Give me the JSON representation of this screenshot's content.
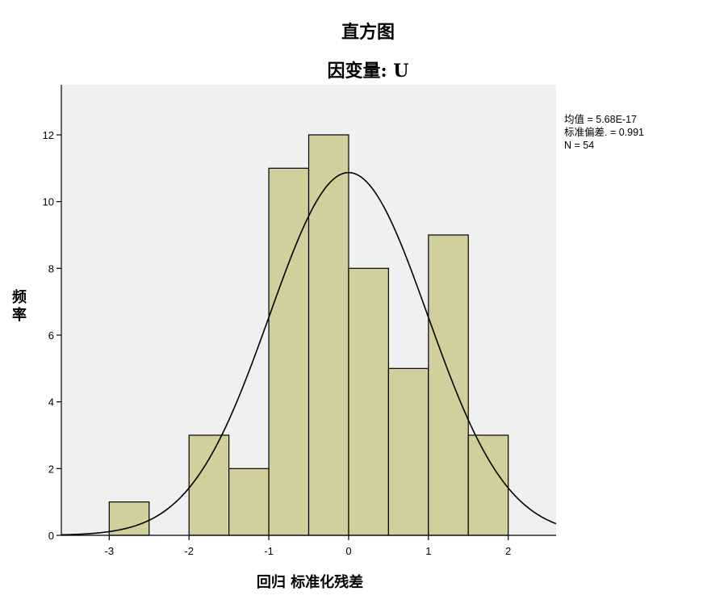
{
  "chart_data": {
    "type": "bar",
    "title": "直方图",
    "subtitle": "因变量: U",
    "xlabel": "回归 标准化残差",
    "ylabel": "频率",
    "xlim": [
      -3.6,
      2.6
    ],
    "ylim": [
      0,
      13.5
    ],
    "xticks": [
      -3,
      -2,
      -1,
      0,
      1,
      2
    ],
    "yticks": [
      0,
      2,
      4,
      6,
      8,
      10,
      12
    ],
    "bins": [
      {
        "x0": -3.0,
        "x1": -2.5,
        "count": 1
      },
      {
        "x0": -2.5,
        "x1": -2.0,
        "count": 0
      },
      {
        "x0": -2.0,
        "x1": -1.5,
        "count": 3
      },
      {
        "x0": -1.5,
        "x1": -1.0,
        "count": 2
      },
      {
        "x0": -1.0,
        "x1": -0.5,
        "count": 11
      },
      {
        "x0": -0.5,
        "x1": 0.0,
        "count": 12
      },
      {
        "x0": 0.0,
        "x1": 0.5,
        "count": 8
      },
      {
        "x0": 0.5,
        "x1": 1.0,
        "count": 5
      },
      {
        "x0": 1.0,
        "x1": 1.5,
        "count": 9
      },
      {
        "x0": 1.5,
        "x1": 2.0,
        "count": 3
      }
    ],
    "normal_curve": {
      "mean": 5.68e-17,
      "std": 0.991,
      "n": 54,
      "bin_width": 0.5
    },
    "stats": {
      "mean_line": "均值 = 5.68E-17",
      "std_line": "标准偏差. = 0.991",
      "n_line": "N = 54"
    },
    "grid": false,
    "colors": {
      "plot_background": "#f0f0f0",
      "bar_fill": "#d3cf9c",
      "bar_stroke": "#000000",
      "curve": "#000000"
    }
  }
}
